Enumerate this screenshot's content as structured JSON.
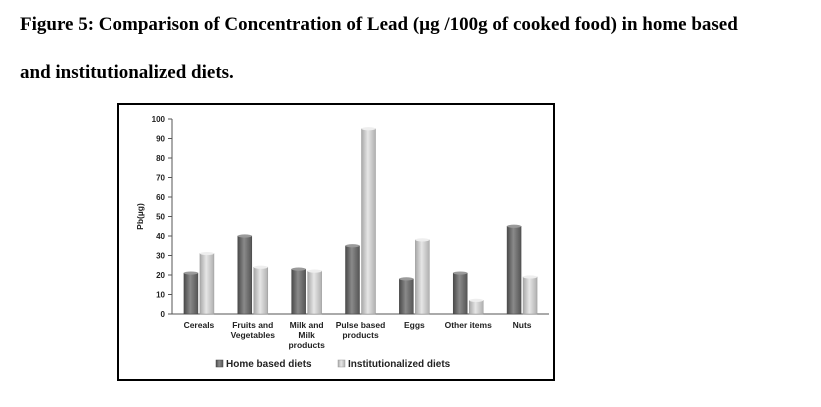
{
  "figure": {
    "caption_line1": "Figure 5: Comparison of Concentration of Lead (µg /100g of cooked food) in home based",
    "caption_line2": "and institutionalized  diets."
  },
  "chart_data": {
    "type": "bar",
    "title": "",
    "xlabel": "",
    "ylabel": "Pb(µg)",
    "ylim": [
      0,
      100
    ],
    "yticks": [
      0,
      10,
      20,
      30,
      40,
      50,
      60,
      70,
      80,
      90,
      100
    ],
    "grid": false,
    "legend_position": "bottom",
    "categories": [
      [
        "Cereals"
      ],
      [
        "Fruits and",
        "Vegetables"
      ],
      [
        "Milk and",
        "Milk",
        "products"
      ],
      [
        "Pulse based",
        "products"
      ],
      [
        "Eggs"
      ],
      [
        "Other items"
      ],
      [
        "Nuts"
      ]
    ],
    "series": [
      {
        "name": "Home based diets",
        "values": [
          21,
          40,
          23,
          35,
          18,
          21,
          45
        ],
        "color": "#6e6e6e"
      },
      {
        "name": "Institutionalized diets",
        "values": [
          31,
          24,
          22,
          95,
          38,
          7,
          19
        ],
        "color": "#c4c4c4"
      }
    ]
  }
}
